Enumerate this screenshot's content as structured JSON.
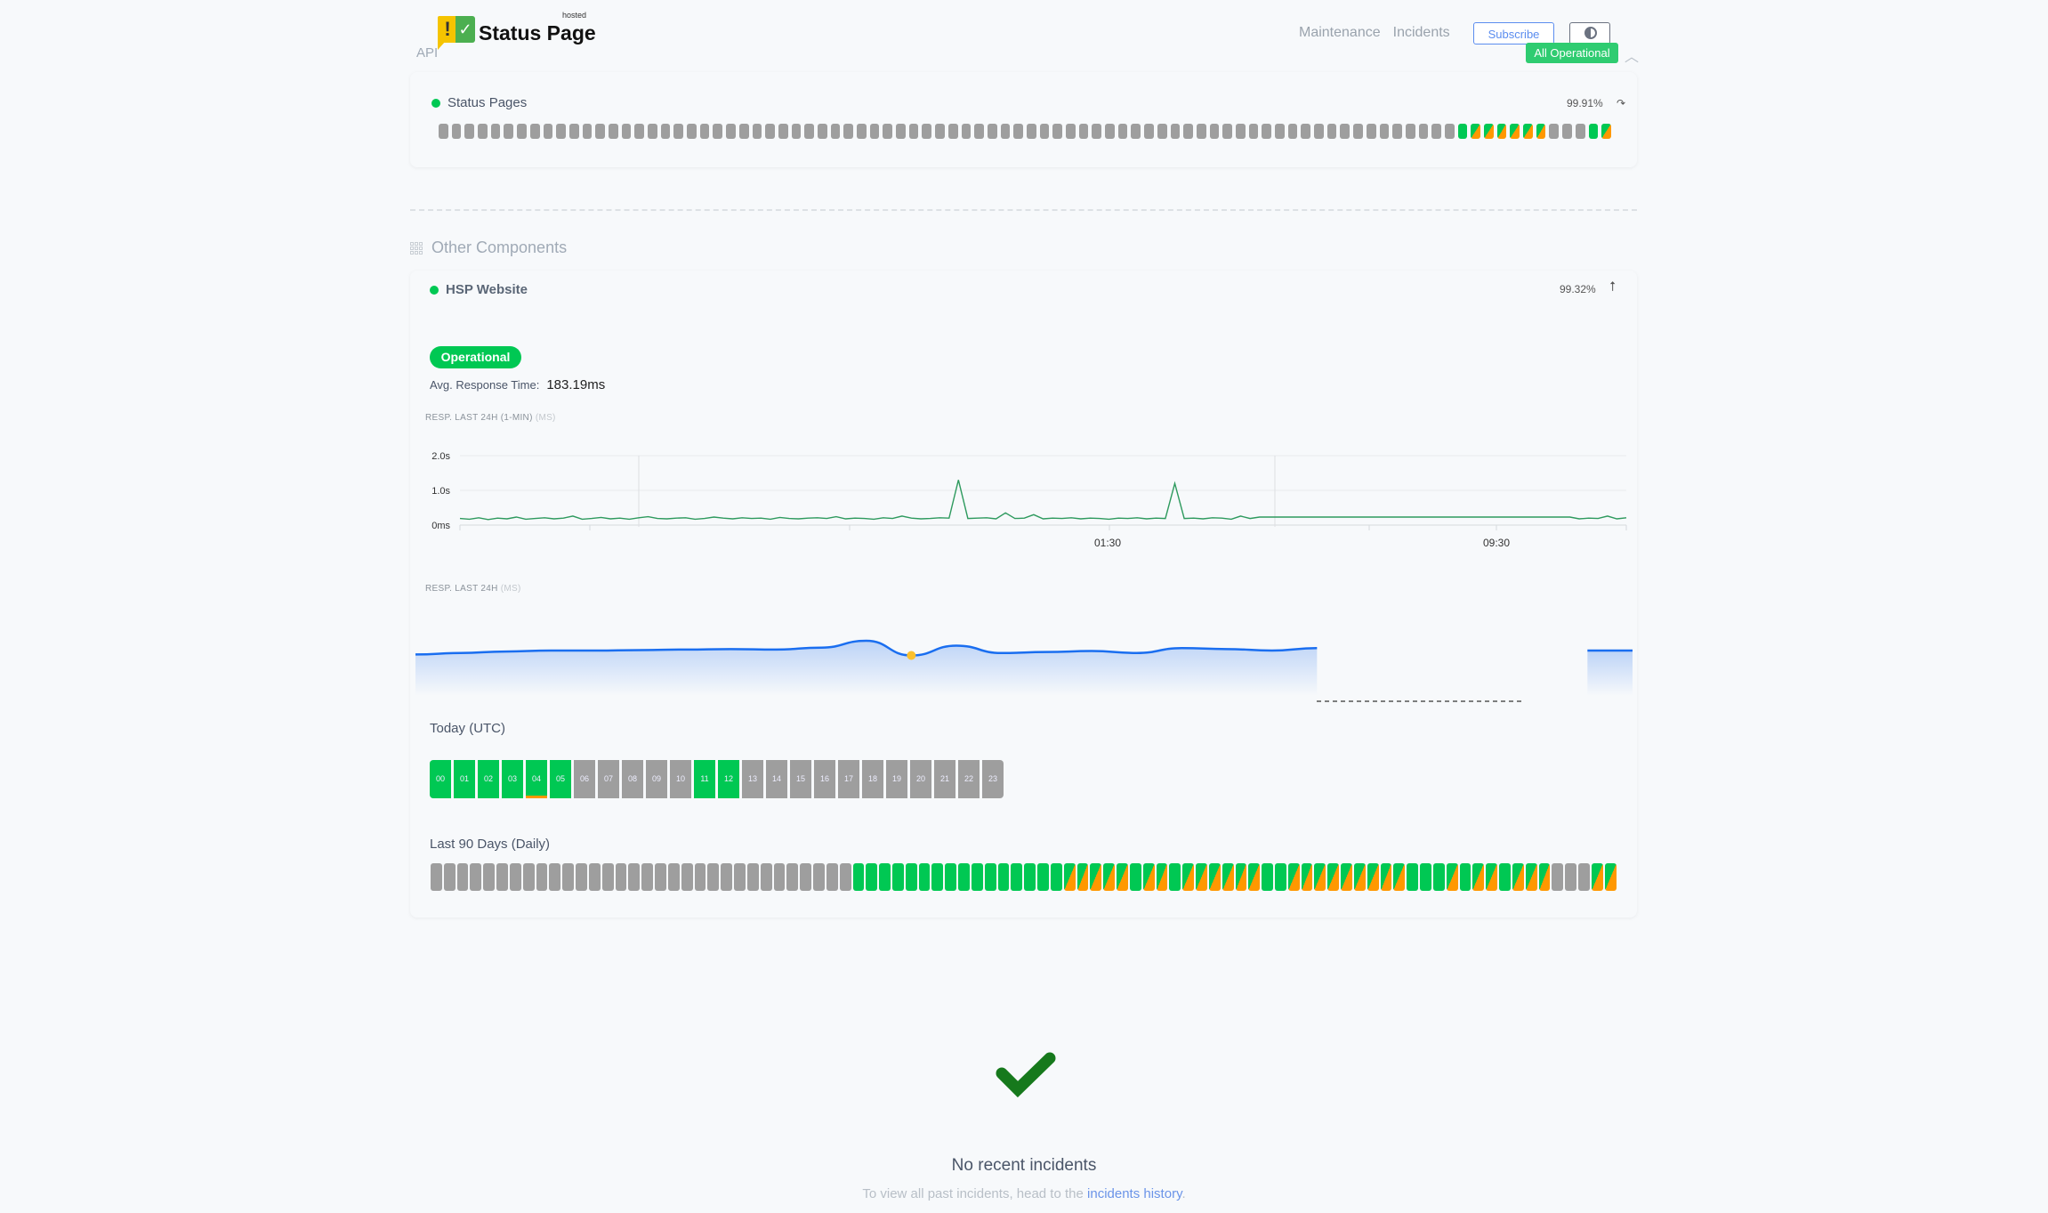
{
  "header": {
    "logo_text": "Status Page",
    "logo_sup": "hosted",
    "group_label": "API",
    "nav": [
      {
        "label": "Maintenance"
      },
      {
        "label": "Incidents"
      }
    ],
    "subscribe_label": "Subscribe",
    "theme_toggle_icon": "half-circle-icon",
    "overall_status": "All Operational",
    "collapse_icon": "chevron-up-icon"
  },
  "colors": {
    "operational": "#00c853",
    "degraded": "#ff9800",
    "no_data": "#9e9e9e",
    "accent": "#5b8def"
  },
  "bar_legend": {
    "g": "operational",
    "h": "partial-degraded",
    "x": "no-data"
  },
  "status_pages": {
    "name": "Status Pages",
    "uptime": "99.91%",
    "action_icon": "redo-icon",
    "bars": [
      "x",
      "x",
      "x",
      "x",
      "x",
      "x",
      "x",
      "x",
      "x",
      "x",
      "x",
      "x",
      "x",
      "x",
      "x",
      "x",
      "x",
      "x",
      "x",
      "x",
      "x",
      "x",
      "x",
      "x",
      "x",
      "x",
      "x",
      "x",
      "x",
      "x",
      "x",
      "x",
      "x",
      "x",
      "x",
      "x",
      "x",
      "x",
      "x",
      "x",
      "x",
      "x",
      "x",
      "x",
      "x",
      "x",
      "x",
      "x",
      "x",
      "x",
      "x",
      "x",
      "x",
      "x",
      "x",
      "x",
      "x",
      "x",
      "x",
      "x",
      "x",
      "x",
      "x",
      "x",
      "x",
      "x",
      "x",
      "x",
      "x",
      "x",
      "x",
      "x",
      "x",
      "x",
      "x",
      "x",
      "x",
      "x",
      "g",
      "h",
      "h",
      "h",
      "h",
      "h",
      "h",
      "x",
      "x",
      "x",
      "g",
      "h"
    ]
  },
  "other_components": {
    "heading": "Other Components",
    "component": {
      "name": "HSP Website",
      "uptime": "99.32%",
      "action_icon": "pin-icon",
      "status": "Operational",
      "avg_label": "Avg. Response Time:",
      "avg_value": "183.19ms",
      "today_title": "Today (UTC)",
      "hours": [
        {
          "label": "00",
          "s": "g"
        },
        {
          "label": "01",
          "s": "g"
        },
        {
          "label": "02",
          "s": "g"
        },
        {
          "label": "03",
          "s": "g"
        },
        {
          "label": "04",
          "s": "g",
          "incident": true
        },
        {
          "label": "05",
          "s": "g"
        },
        {
          "label": "06",
          "s": "x"
        },
        {
          "label": "07",
          "s": "x"
        },
        {
          "label": "08",
          "s": "x"
        },
        {
          "label": "09",
          "s": "x"
        },
        {
          "label": "10",
          "s": "x"
        },
        {
          "label": "11",
          "s": "g"
        },
        {
          "label": "12",
          "s": "g"
        },
        {
          "label": "13",
          "s": "x"
        },
        {
          "label": "14",
          "s": "x"
        },
        {
          "label": "15",
          "s": "x"
        },
        {
          "label": "16",
          "s": "x"
        },
        {
          "label": "17",
          "s": "x"
        },
        {
          "label": "18",
          "s": "x"
        },
        {
          "label": "19",
          "s": "x"
        },
        {
          "label": "20",
          "s": "x"
        },
        {
          "label": "21",
          "s": "x"
        },
        {
          "label": "22",
          "s": "x"
        },
        {
          "label": "23",
          "s": "x"
        }
      ],
      "days_title": "Last 90 Days (Daily)",
      "days": [
        "x",
        "x",
        "x",
        "x",
        "x",
        "x",
        "x",
        "x",
        "x",
        "x",
        "x",
        "x",
        "x",
        "x",
        "x",
        "x",
        "x",
        "x",
        "x",
        "x",
        "x",
        "x",
        "x",
        "x",
        "x",
        "x",
        "x",
        "x",
        "x",
        "x",
        "x",
        "x",
        "g",
        "g",
        "g",
        "g",
        "g",
        "g",
        "g",
        "g",
        "g",
        "g",
        "g",
        "g",
        "g",
        "g",
        "g",
        "g",
        "h",
        "h",
        "h",
        "h",
        "h",
        "g",
        "h",
        "h",
        "g",
        "h",
        "h",
        "h",
        "h",
        "h",
        "h",
        "g",
        "g",
        "h",
        "h",
        "h",
        "h",
        "h",
        "h",
        "h",
        "h",
        "h",
        "g",
        "g",
        "g",
        "h",
        "g",
        "h",
        "h",
        "g",
        "h",
        "h",
        "h",
        "x",
        "x",
        "x",
        "h",
        "h"
      ]
    }
  },
  "chart_data": [
    {
      "type": "line",
      "title": "RESP. LAST 24H (1-MIN)",
      "unit": "(MS)",
      "ylim": [
        0,
        2000
      ],
      "yticks": [
        {
          "v": 0,
          "label": "0ms"
        },
        {
          "v": 1000,
          "label": "1.0s"
        },
        {
          "v": 2000,
          "label": "2.0s"
        }
      ],
      "xtick_labels": [
        "01:30",
        "09:30"
      ],
      "grid": true,
      "values": [
        190,
        170,
        210,
        160,
        200,
        180,
        230,
        170,
        190,
        210,
        180,
        200,
        260,
        170,
        190,
        220,
        180,
        200,
        170,
        210,
        240,
        190,
        180,
        200,
        210,
        170,
        190,
        230,
        200,
        180,
        210,
        190,
        200,
        170,
        220,
        190,
        180,
        200,
        210,
        190,
        240,
        180,
        200,
        190,
        170,
        210,
        190,
        260,
        200,
        180,
        190,
        210,
        200,
        1300,
        190,
        200,
        210,
        180,
        350,
        190,
        200,
        300,
        180,
        200,
        190,
        210,
        180,
        200,
        190,
        170,
        200,
        190,
        210,
        180,
        200,
        190,
        1200,
        190,
        200,
        180,
        210,
        200,
        170,
        260,
        190,
        230,
        230,
        230,
        230,
        230,
        230,
        230,
        230,
        230,
        230,
        230,
        230,
        230,
        230,
        230,
        230,
        230,
        230,
        230,
        230,
        230,
        230,
        230,
        230,
        230,
        230,
        230,
        230,
        230,
        230,
        230,
        230,
        230,
        230,
        180,
        200,
        190,
        260,
        180,
        210
      ]
    },
    {
      "type": "area",
      "title": "RESP. LAST 24H",
      "unit": "(MS)",
      "values": [
        172,
        175,
        178,
        180,
        180,
        181,
        182,
        183,
        182,
        186,
        200,
        170,
        190,
        175,
        177,
        179,
        175,
        185,
        183,
        180,
        185,
        null,
        null,
        null,
        null,
        null,
        180,
        180
      ],
      "highlighted_index": 11
    }
  ],
  "incidents": {
    "icon": "checkmark-icon",
    "title": "No recent incidents",
    "text_before": "To view all past incidents, head to the ",
    "link": "incidents history",
    "text_after": "."
  }
}
